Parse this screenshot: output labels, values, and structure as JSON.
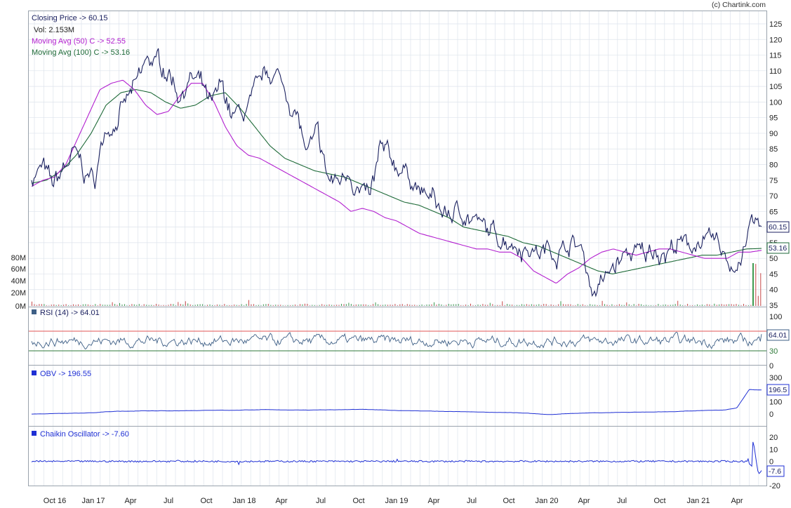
{
  "header": {
    "credit": "(c) Chartink.com",
    "closing_price": "Closing Price -> 60.15",
    "volume": "Vol: 2.153M",
    "ma50": "Moving Avg (50) C -> 52.55",
    "ma100": "Moving Avg (100) C -> 53.16"
  },
  "colors": {
    "price": "#1c2260",
    "ma50": "#b21fcf",
    "ma100": "#1e6a38",
    "rsi": "#3e5f86",
    "obv": "#1e2fd4",
    "chaikin": "#1e2fd4",
    "grid": "#dde3ec",
    "rsi_upper": "#e05555",
    "rsi_lower": "#2f7a3a"
  },
  "chart_data": [
    {
      "type": "line",
      "name": "price",
      "x_labels": [
        "Oct 16",
        "Jan 17",
        "Apr",
        "Jul",
        "Oct",
        "Jan 18",
        "Apr",
        "Jul",
        "Oct",
        "Jan 19",
        "Apr",
        "Jul",
        "Oct",
        "Jan 20",
        "Apr",
        "Jul",
        "Oct",
        "Jan 21",
        "Apr"
      ],
      "y_ticks": [
        35,
        40,
        45,
        50,
        55,
        60,
        65,
        70,
        75,
        80,
        85,
        90,
        95,
        100,
        105,
        110,
        115,
        120,
        125
      ],
      "ylim": [
        35,
        127
      ],
      "volume_ticks": [
        "0M",
        "20M",
        "40M",
        "60M",
        "80M"
      ],
      "series": [
        {
          "name": "Closing Price",
          "values": [
            76,
            79,
            72,
            78,
            83,
            77,
            75,
            92,
            95,
            100,
            105,
            113,
            112,
            110,
            103,
            108,
            105,
            97,
            104,
            95,
            96,
            100,
            107,
            110,
            103,
            97,
            83,
            88,
            75,
            74,
            79,
            72,
            68,
            84,
            80,
            79,
            76,
            70,
            68,
            64,
            64,
            65,
            62,
            58,
            57,
            57,
            55,
            54,
            52,
            53,
            53,
            55,
            53,
            40,
            42,
            47,
            50,
            52,
            50,
            54,
            52,
            55,
            53,
            56,
            54,
            53,
            48,
            50,
            61,
            60
          ]
        },
        {
          "name": "Moving Avg (50) C",
          "values": [
            73,
            75,
            76,
            80,
            88,
            96,
            104,
            106,
            107,
            104,
            99,
            96,
            97,
            102,
            106,
            106,
            100,
            92,
            86,
            83,
            82,
            80,
            78,
            76,
            74,
            72,
            70,
            68,
            65,
            66,
            65,
            63,
            62,
            60,
            58,
            57,
            56,
            55,
            54,
            53,
            53,
            52,
            52,
            50,
            46,
            44,
            42,
            45,
            47,
            50,
            52,
            53,
            52,
            51,
            52,
            53,
            53,
            52,
            51,
            50,
            50,
            50,
            52,
            52,
            52.55
          ]
        },
        {
          "name": "Moving Avg (100) C",
          "values": [
            74,
            75,
            78,
            83,
            90,
            99,
            103,
            104,
            103,
            100,
            98,
            99,
            102,
            103,
            98,
            92,
            86,
            82,
            80,
            78,
            77,
            76,
            74,
            72,
            70,
            68,
            67,
            65,
            63,
            60,
            59,
            58,
            57,
            55,
            54,
            52,
            50,
            48,
            46,
            45,
            46,
            47,
            48,
            49,
            50,
            51,
            51,
            52,
            53,
            53.16
          ]
        }
      ],
      "last_price_label": "60.15",
      "last_ma_label": "53.16"
    },
    {
      "type": "line",
      "name": "RSI",
      "title": "RSI (14) -> 64.01",
      "y_ticks": [
        0,
        30,
        100
      ],
      "ylim": [
        0,
        100
      ],
      "bands": [
        30,
        70
      ],
      "last_label": "64.01"
    },
    {
      "type": "line",
      "name": "OBV",
      "title": "OBV -> 196.55",
      "y_ticks": [
        0,
        100,
        200,
        300
      ],
      "ylim": [
        -60,
        320
      ],
      "values": [
        0,
        2,
        4,
        6,
        8,
        10,
        18,
        22,
        24,
        25,
        26,
        26,
        27,
        28,
        30,
        31,
        30,
        34,
        35,
        36,
        34,
        33,
        32,
        33,
        34,
        36,
        38,
        37,
        34,
        30,
        28,
        26,
        24,
        22,
        20,
        18,
        16,
        14,
        12,
        10,
        8,
        0,
        -5,
        2,
        5,
        8,
        10,
        12,
        14,
        15,
        16,
        18,
        20,
        24,
        28,
        30,
        34,
        50,
        200,
        196.55
      ],
      "last_label": "196.5"
    },
    {
      "type": "line",
      "name": "Chaikin Oscillator",
      "title": "Chaikin Oscillator -> -7.60",
      "y_ticks": [
        -20,
        -10,
        0,
        10,
        20
      ],
      "ylim": [
        -22,
        22
      ],
      "last_label": "-7.6"
    }
  ]
}
